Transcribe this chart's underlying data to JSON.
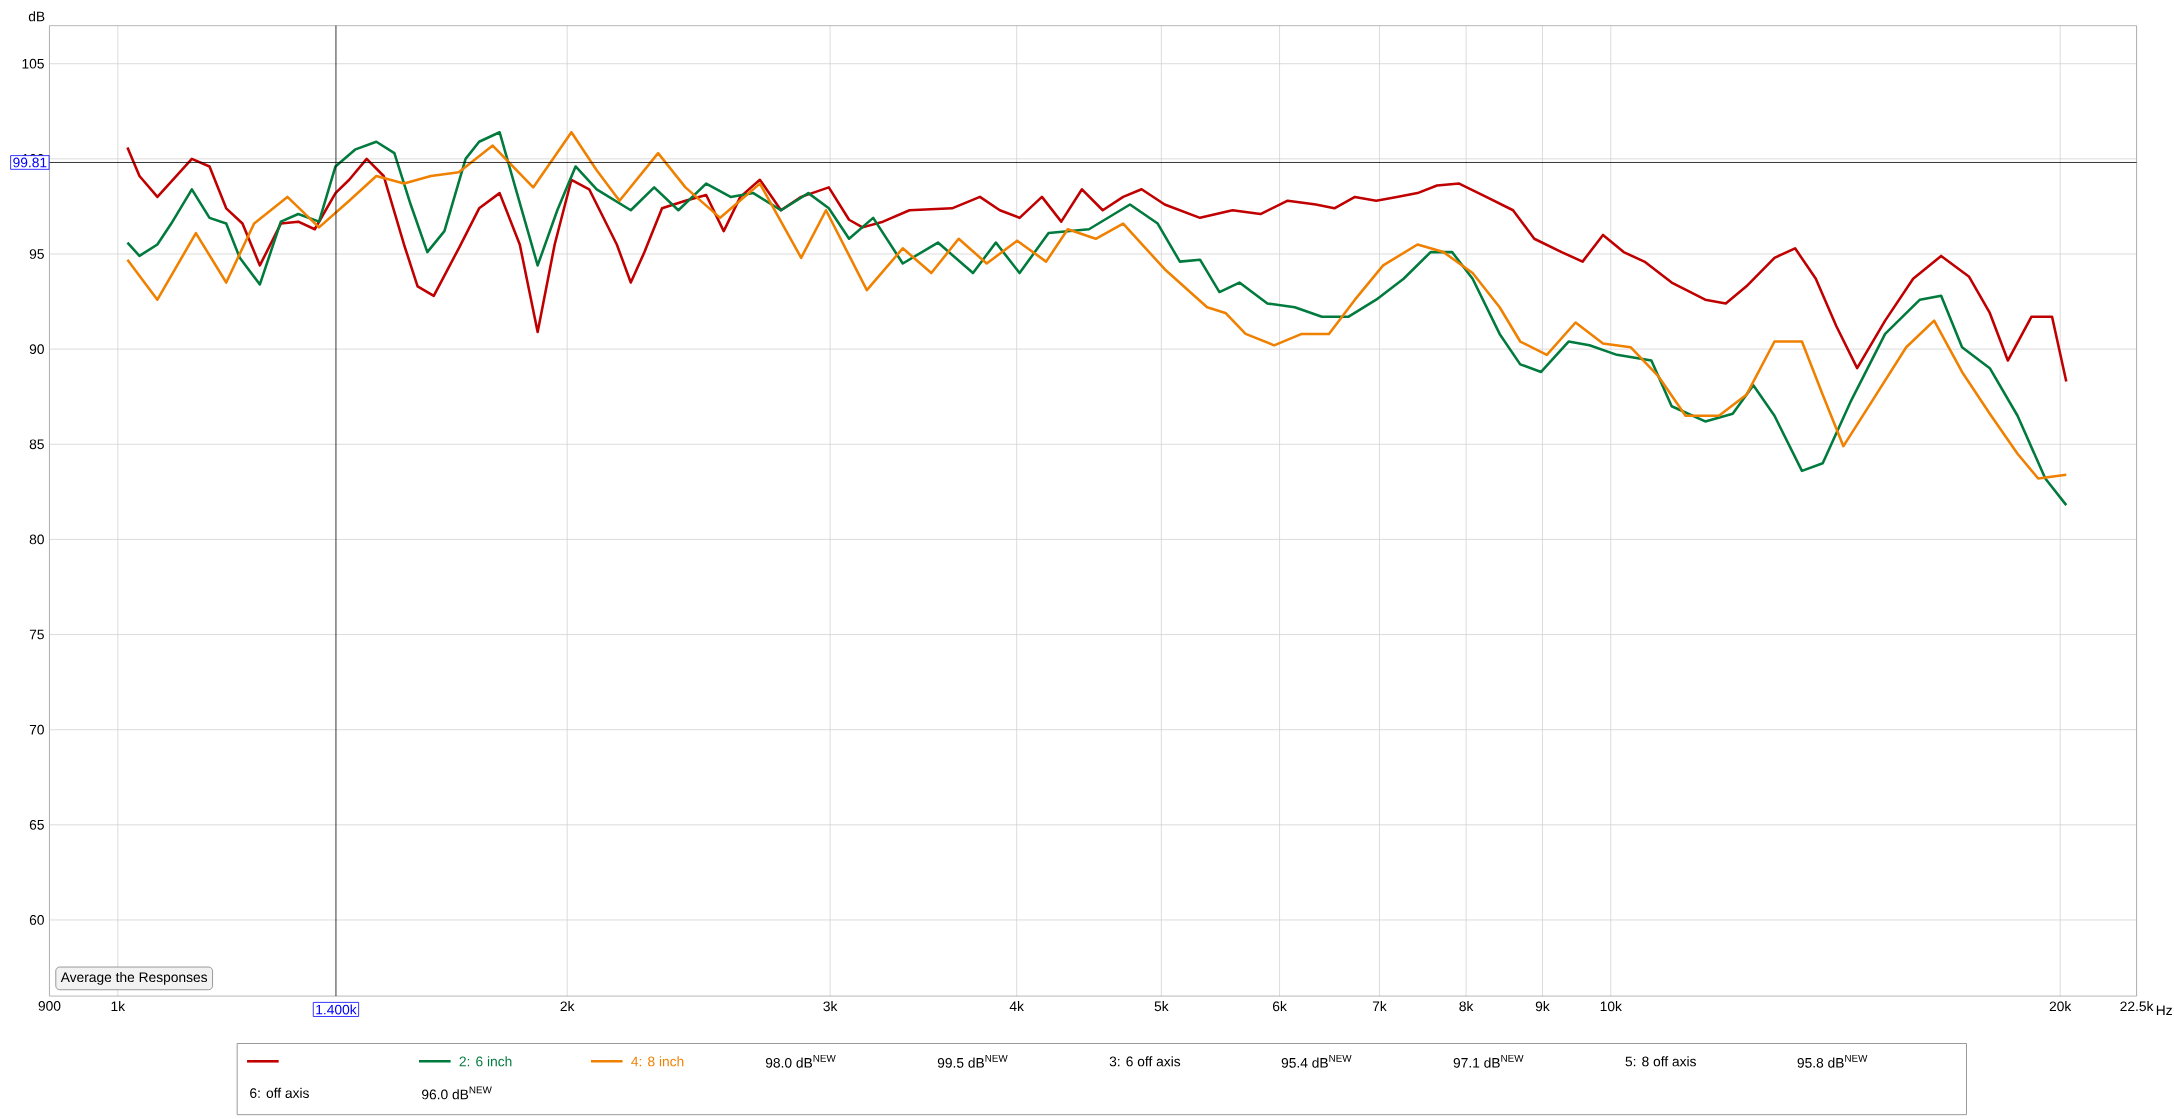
{
  "chart_data": {
    "type": "line",
    "ylabel": "dB",
    "log": "x",
    "grid": true,
    "legend": "bottom",
    "xlim": [
      900,
      22500
    ],
    "ylim": [
      56,
      107
    ],
    "xticks": [
      {
        "value": 900,
        "label": "900"
      },
      {
        "value": 1000,
        "label": "1k"
      },
      {
        "value": 2000,
        "label": "2k"
      },
      {
        "value": 3000,
        "label": "3k"
      },
      {
        "value": 4000,
        "label": "4k"
      },
      {
        "value": 5000,
        "label": "5k"
      },
      {
        "value": 6000,
        "label": "6k"
      },
      {
        "value": 7000,
        "label": "7k"
      },
      {
        "value": 8000,
        "label": "8k"
      },
      {
        "value": 9000,
        "label": "9k"
      },
      {
        "value": 10000,
        "label": "10k"
      },
      {
        "value": 20000,
        "label": "20k"
      },
      {
        "value": 22500,
        "label": "22.5k"
      }
    ],
    "xlabel": "Hz",
    "yticks": [
      60,
      65,
      70,
      75,
      80,
      85,
      90,
      95,
      100,
      105
    ],
    "ref_lines": [
      {
        "axis": "y",
        "value": 99.81,
        "label": "99.81",
        "color": "#000000"
      },
      {
        "axis": "x",
        "value": 1400,
        "label": "1.400k",
        "color": "#000000"
      }
    ],
    "annotations": [
      "Average the Responses",
      "98.0 dB$^{NEW}$",
      "99.5 dB$^{NEW}$",
      "3: 6 off axis",
      "95.4 dB$^{NEW}$",
      "97.1 dB$^{NEW}$",
      "5: 8 off axis",
      "95.8 dB$^{NEW}$",
      "6: off axis",
      "96.0 dB$^{NEW}$"
    ],
    "series": [
      {
        "color": "#c00000",
        "x": [
          1015,
          1034,
          1063,
          1121,
          1152,
          1182,
          1212,
          1245,
          1286,
          1321,
          1355,
          1399,
          1429,
          1468,
          1507,
          1555,
          1588,
          1628,
          1692,
          1746,
          1802,
          1859,
          1911,
          1962,
          2013,
          2069,
          2159,
          2206,
          2253,
          2315,
          2400,
          2478,
          2546,
          2612,
          2692,
          2781,
          2869,
          2994,
          3089,
          3154,
          3255,
          3391,
          3621,
          3780,
          3898,
          4018,
          4159,
          4285,
          4424,
          4568,
          4714,
          4850,
          5026,
          5307,
          5580,
          5826,
          6076,
          6346,
          6530,
          6740,
          6965,
          7190,
          7423,
          7650,
          7915,
          8252,
          8601,
          8887,
          9270,
          9574,
          9881,
          10201,
          10532,
          10985,
          11568,
          11941,
          12327,
          12872,
          13288,
          13719,
          14162,
          14623,
          15268,
          15942,
          16646,
          17381,
          17942,
          18450,
          19133,
          19754,
          20188
        ],
        "values": [
          100.6,
          99.1,
          98.0,
          100.0,
          99.6,
          97.4,
          96.6,
          94.4,
          96.6,
          96.7,
          96.3,
          98.2,
          98.9,
          100.0,
          99.1,
          95.5,
          93.3,
          92.8,
          95.3,
          97.4,
          98.2,
          95.5,
          90.9,
          95.5,
          98.9,
          98.4,
          95.5,
          93.5,
          95.1,
          97.4,
          97.8,
          98.1,
          96.2,
          98.0,
          98.9,
          97.3,
          98.0,
          98.5,
          96.8,
          96.4,
          96.7,
          97.3,
          97.4,
          98.0,
          97.3,
          96.9,
          98.0,
          96.7,
          98.4,
          97.3,
          98.0,
          98.4,
          97.6,
          96.9,
          97.3,
          97.1,
          97.8,
          97.6,
          97.4,
          98.0,
          97.8,
          98.0,
          98.2,
          98.6,
          98.7,
          98.0,
          97.3,
          95.8,
          95.1,
          94.6,
          96.0,
          95.1,
          94.6,
          93.5,
          92.6,
          92.4,
          93.3,
          94.8,
          95.3,
          93.7,
          91.2,
          89.0,
          91.5,
          93.7,
          94.9,
          93.8,
          91.9,
          89.4,
          91.7,
          91.7,
          88.3
        ]
      },
      {
        "name": "2: 6 inch",
        "color": "#007a3d",
        "x": [
          1015,
          1034,
          1063,
          1086,
          1121,
          1152,
          1182,
          1207,
          1245,
          1286,
          1321,
          1364,
          1399,
          1443,
          1490,
          1532,
          1571,
          1612,
          1655,
          1710,
          1746,
          1802,
          1848,
          1911,
          1970,
          2026,
          2093,
          2206,
          2287,
          2374,
          2478,
          2573,
          2665,
          2781,
          2901,
          2994,
          3089,
          3206,
          3356,
          3543,
          3740,
          3874,
          4018,
          4202,
          4472,
          4764,
          4972,
          5145,
          5307,
          5469,
          5640,
          5889,
          6143,
          6405,
          6671,
          6965,
          7266,
          7575,
          7831,
          8081,
          8425,
          8697,
          8981,
          9370,
          9677,
          10095,
          10646,
          10985,
          11568,
          12069,
          12459,
          12872,
          13429,
          13866,
          14468,
          15268,
          16110,
          16646,
          17193,
          17942,
          18728,
          19546,
          20188
        ],
        "values": [
          95.6,
          94.9,
          95.5,
          96.6,
          98.4,
          96.9,
          96.6,
          94.8,
          93.4,
          96.7,
          97.1,
          96.7,
          99.6,
          100.5,
          100.9,
          100.3,
          97.6,
          95.1,
          96.2,
          100.0,
          100.9,
          101.4,
          98.4,
          94.4,
          97.3,
          99.6,
          98.4,
          97.3,
          98.5,
          97.3,
          98.7,
          98.0,
          98.2,
          97.3,
          98.2,
          97.4,
          95.8,
          96.9,
          94.5,
          95.6,
          94.0,
          95.6,
          94.0,
          96.1,
          96.3,
          97.6,
          96.6,
          94.6,
          94.7,
          93.0,
          93.5,
          92.4,
          92.2,
          91.7,
          91.7,
          92.6,
          93.7,
          95.1,
          95.1,
          93.7,
          90.8,
          89.2,
          88.8,
          90.4,
          90.2,
          89.7,
          89.4,
          87.0,
          86.2,
          86.6,
          88.1,
          86.5,
          83.6,
          84.0,
          87.2,
          90.8,
          92.6,
          92.8,
          90.1,
          89.0,
          86.5,
          83.2,
          81.8
        ]
      },
      {
        "name": "4: 8 inch",
        "color": "#f08000",
        "x": [
          1015,
          1063,
          1128,
          1182,
          1234,
          1299,
          1364,
          1429,
          1490,
          1555,
          1621,
          1692,
          1783,
          1898,
          2013,
          2093,
          2168,
          2301,
          2400,
          2532,
          2692,
          2869,
          2981,
          3175,
          3356,
          3507,
          3658,
          3820,
          4003,
          4186,
          4328,
          4519,
          4714,
          5026,
          5366,
          5520,
          5694,
          5950,
          6209,
          6475,
          6740,
          7040,
          7423,
          7727,
          8081,
          8425,
          8697,
          9061,
          9471,
          9881,
          10310,
          10756,
          11222,
          11815,
          12327,
          12872,
          13429,
          13866,
          14316,
          14944,
          15773,
          16467,
          17193,
          17942,
          18728,
          19336,
          20188
        ],
        "values": [
          94.7,
          92.6,
          96.1,
          93.5,
          96.6,
          98.0,
          96.4,
          97.8,
          99.1,
          98.7,
          99.1,
          99.3,
          100.7,
          98.5,
          101.4,
          99.4,
          97.8,
          100.3,
          98.5,
          96.9,
          98.7,
          94.8,
          97.3,
          93.1,
          95.3,
          94.0,
          95.8,
          94.5,
          95.7,
          94.6,
          96.3,
          95.8,
          96.6,
          94.2,
          92.2,
          91.9,
          90.8,
          90.2,
          90.8,
          90.8,
          92.6,
          94.4,
          95.5,
          95.1,
          94.0,
          92.2,
          90.4,
          89.7,
          91.4,
          90.3,
          90.1,
          88.6,
          86.5,
          86.5,
          87.6,
          90.4,
          90.4,
          87.6,
          84.9,
          87.2,
          90.1,
          91.5,
          88.8,
          86.6,
          84.5,
          83.2,
          83.4
        ]
      }
    ]
  }
}
